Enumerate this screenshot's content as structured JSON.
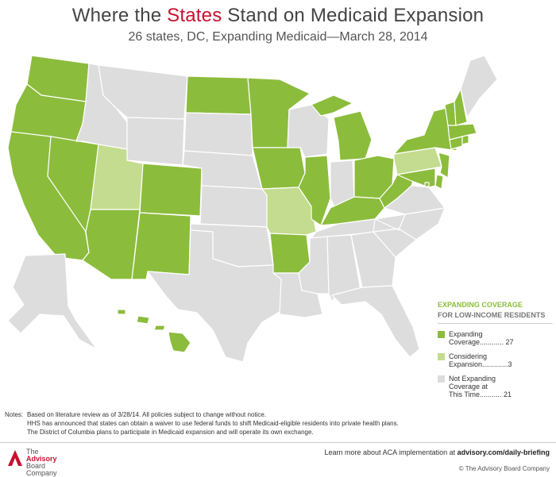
{
  "header": {
    "title_prefix": "Where the ",
    "title_accent": "States",
    "title_suffix": " Stand on Medicaid Expansion",
    "subtitle": "26 states, DC, Expanding Medicaid—March 28, 2014"
  },
  "colors": {
    "expanding": "#8cbc3c",
    "considering": "#c3dc8f",
    "not_expanding": "#dddddd",
    "border": "#ffffff",
    "accent": "#c8102e"
  },
  "map_data": {
    "categories": {
      "expanding": [
        "WA",
        "OR",
        "CA",
        "NV",
        "AZ",
        "CO",
        "NM",
        "ND",
        "MN",
        "IA",
        "IL",
        "AR",
        "MI",
        "OH",
        "KY",
        "WV",
        "MD",
        "DE",
        "NJ",
        "NY",
        "CT",
        "RI",
        "MA",
        "VT",
        "NH",
        "HI",
        "DC"
      ],
      "considering": [
        "UT",
        "MO",
        "PA"
      ],
      "not_expanding": [
        "ID",
        "MT",
        "WY",
        "SD",
        "NE",
        "KS",
        "OK",
        "TX",
        "WI",
        "IN",
        "TN",
        "MS",
        "AL",
        "GA",
        "FL",
        "SC",
        "NC",
        "VA",
        "ME",
        "LA",
        "AK"
      ]
    }
  },
  "legend": {
    "title": "EXPANDING COVERAGE",
    "subtitle": "FOR LOW-INCOME RESIDENTS",
    "items": [
      {
        "label_line1": "Expanding",
        "label_line2": "Coverage............ 27"
      },
      {
        "label_line1": "Considering",
        "label_line2": "Expansion.............3"
      },
      {
        "label_line1": "Not Expanding",
        "label_line2": "Coverage at",
        "label_line3": "This Time........... 21"
      }
    ]
  },
  "notes": {
    "label": "Notes:",
    "lines": [
      "Based on literature review as of 3/28/14. All policies subject to change without notice.",
      "HHS has announced that states can obtain a waiver to use federal funds to shift Medicaid-eligible residents into private health plans.",
      "The District of Columbia plans to participate in Medicaid expansion and will operate its own exchange."
    ]
  },
  "footer": {
    "logo_line1": "The",
    "logo_line2": "Advisory",
    "logo_line3": "Board",
    "logo_line4": "Company",
    "link_text": "Learn more about ACA implementation at ",
    "link_url": "advisory.com/daily-briefing",
    "copyright": "© The Advisory Board Company"
  }
}
